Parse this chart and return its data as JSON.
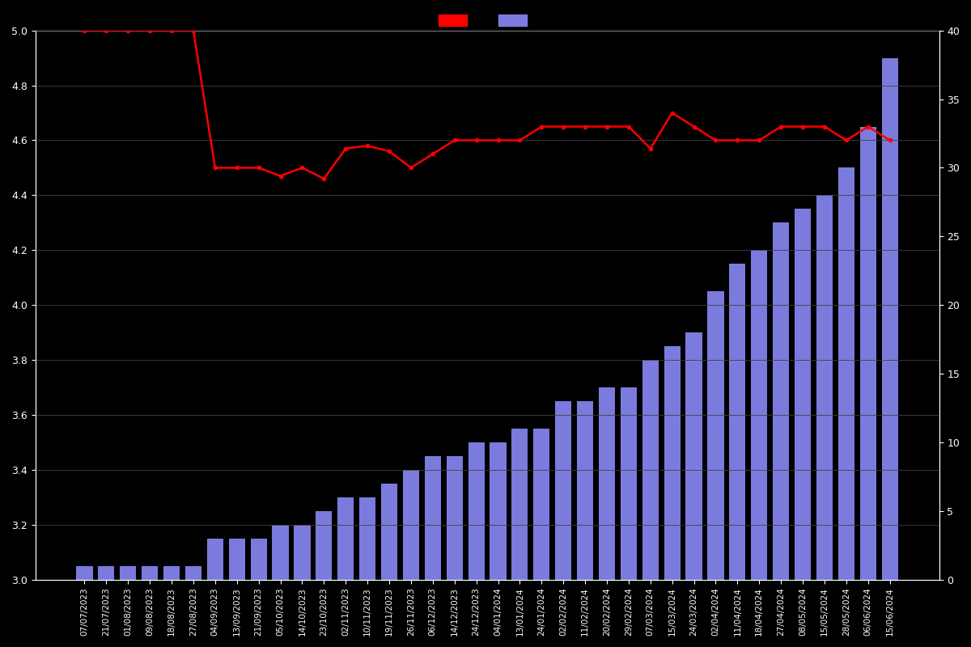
{
  "dates": [
    "07/07/2023",
    "21/07/2023",
    "01/08/2023",
    "09/08/2023",
    "18/08/2023",
    "27/08/2023",
    "04/09/2023",
    "13/09/2023",
    "21/09/2023",
    "05/10/2023",
    "14/10/2023",
    "23/10/2023",
    "02/11/2023",
    "10/11/2023",
    "19/11/2023",
    "26/11/2023",
    "06/12/2023",
    "14/12/2023",
    "24/12/2023",
    "04/01/2024",
    "13/01/2024",
    "24/01/2024",
    "02/02/2024",
    "11/02/2024",
    "20/02/2024",
    "29/02/2024",
    "07/03/2024",
    "15/03/2024",
    "24/03/2024",
    "02/04/2024",
    "11/04/2024",
    "18/04/2024",
    "27/04/2024",
    "08/05/2024",
    "15/05/2024",
    "28/05/2024",
    "06/06/2024",
    "15/06/2024"
  ],
  "ratings": [
    5.0,
    5.0,
    5.0,
    5.0,
    5.0,
    5.0,
    4.5,
    4.5,
    4.5,
    4.47,
    4.5,
    4.46,
    4.57,
    4.58,
    4.56,
    4.5,
    4.55,
    4.6,
    4.6,
    4.6,
    4.6,
    4.65,
    4.65,
    4.65,
    4.65,
    4.65,
    4.57,
    4.7,
    4.65,
    4.6,
    4.6,
    4.6,
    4.65,
    4.65,
    4.65,
    4.6,
    4.65,
    4.6
  ],
  "counts": [
    1,
    1,
    1,
    1,
    1,
    1,
    3,
    3,
    3,
    4,
    4,
    5,
    6,
    6,
    7,
    8,
    9,
    9,
    10,
    10,
    11,
    11,
    13,
    13,
    14,
    14,
    16,
    17,
    18,
    21,
    23,
    24,
    26,
    27,
    28,
    30,
    33,
    38
  ],
  "bar_color": "#7b7bdd",
  "line_color": "#ff0000",
  "background_color": "#000000",
  "text_color": "#ffffff",
  "grid_color": "#404040",
  "left_ylim": [
    3.0,
    5.0
  ],
  "right_ylim": [
    0,
    40
  ],
  "left_yticks": [
    3.0,
    3.2,
    3.4,
    3.6,
    3.8,
    4.0,
    4.2,
    4.4,
    4.6,
    4.8,
    5.0
  ],
  "right_yticks": [
    0,
    5,
    10,
    15,
    20,
    25,
    30,
    35,
    40
  ],
  "figsize": [
    12,
    8
  ],
  "dpi": 100
}
